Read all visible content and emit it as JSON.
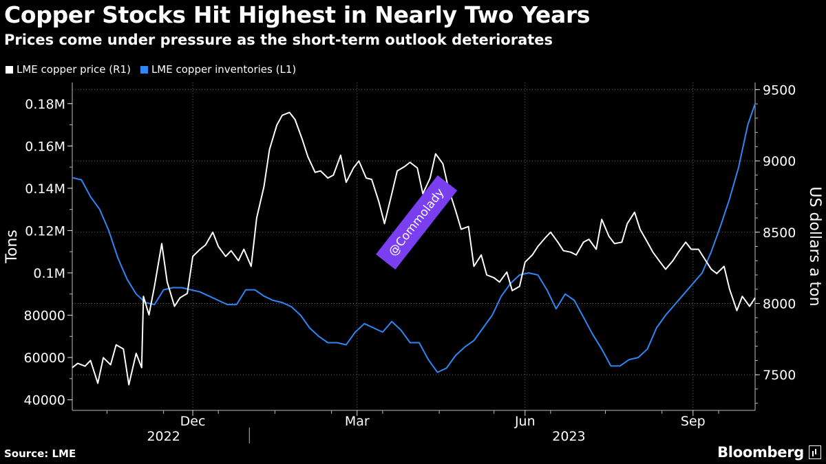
{
  "header": {
    "title": "Copper Stocks Hit Highest in Nearly Two Years",
    "subtitle": "Prices come under pressure as the short-term outlook deteriorates"
  },
  "legend": [
    {
      "label": "LME copper price (R1)",
      "color": "#ffffff"
    },
    {
      "label": "LME copper inventories (L1)",
      "color": "#2f86f5"
    }
  ],
  "watermark": "@Commolady",
  "footer": {
    "source": "Source: LME",
    "brand": "Bloomberg"
  },
  "chart_data": {
    "type": "line",
    "x_range": [
      "2022-09-26",
      "2023-10-05"
    ],
    "x_ticks": [
      {
        "date": "2022-12-01",
        "label": "Dec"
      },
      {
        "date": "2023-03-01",
        "label": "Mar"
      },
      {
        "date": "2023-06-01",
        "label": "Jun"
      },
      {
        "date": "2023-09-01",
        "label": "Sep"
      }
    ],
    "year_labels": [
      {
        "date": "2022-11-15",
        "label": "2022"
      },
      {
        "date": "2023-06-25",
        "label": "2023"
      }
    ],
    "left_axis": {
      "label": "Tons",
      "ylim": [
        35000,
        190000
      ],
      "ticks": [
        {
          "value": 40000,
          "label": "40000"
        },
        {
          "value": 60000,
          "label": "60000"
        },
        {
          "value": 80000,
          "label": "80000"
        },
        {
          "value": 100000,
          "label": "0.1M"
        },
        {
          "value": 120000,
          "label": "0.12M"
        },
        {
          "value": 140000,
          "label": "0.14M"
        },
        {
          "value": 160000,
          "label": "0.16M"
        },
        {
          "value": 180000,
          "label": "0.18M"
        }
      ]
    },
    "right_axis": {
      "label": "US dollars a ton",
      "ylim": [
        7250,
        9550
      ],
      "ticks": [
        {
          "value": 7500,
          "label": "7500"
        },
        {
          "value": 8000,
          "label": "8000"
        },
        {
          "value": 8500,
          "label": "8500"
        },
        {
          "value": 9000,
          "label": "9000"
        },
        {
          "value": 9500,
          "label": "9500"
        }
      ]
    },
    "series": [
      {
        "name": "LME copper price (R1)",
        "axis": "right",
        "color": "#ffffff",
        "points": [
          [
            "2022-09-26",
            7550
          ],
          [
            "2022-09-29",
            7580
          ],
          [
            "2022-10-03",
            7560
          ],
          [
            "2022-10-06",
            7600
          ],
          [
            "2022-10-10",
            7440
          ],
          [
            "2022-10-13",
            7620
          ],
          [
            "2022-10-17",
            7570
          ],
          [
            "2022-10-20",
            7710
          ],
          [
            "2022-10-24",
            7680
          ],
          [
            "2022-10-27",
            7430
          ],
          [
            "2022-10-31",
            7650
          ],
          [
            "2022-11-03",
            7550
          ],
          [
            "2022-11-04",
            8050
          ],
          [
            "2022-11-07",
            7920
          ],
          [
            "2022-11-10",
            8120
          ],
          [
            "2022-11-14",
            8420
          ],
          [
            "2022-11-17",
            8150
          ],
          [
            "2022-11-21",
            7980
          ],
          [
            "2022-11-24",
            8040
          ],
          [
            "2022-11-28",
            8070
          ],
          [
            "2022-12-01",
            8330
          ],
          [
            "2022-12-05",
            8380
          ],
          [
            "2022-12-08",
            8410
          ],
          [
            "2022-12-12",
            8500
          ],
          [
            "2022-12-15",
            8400
          ],
          [
            "2022-12-19",
            8330
          ],
          [
            "2022-12-22",
            8370
          ],
          [
            "2022-12-26",
            8300
          ],
          [
            "2022-12-29",
            8380
          ],
          [
            "2023-01-02",
            8260
          ],
          [
            "2023-01-05",
            8600
          ],
          [
            "2023-01-09",
            8820
          ],
          [
            "2023-01-12",
            9080
          ],
          [
            "2023-01-16",
            9250
          ],
          [
            "2023-01-19",
            9320
          ],
          [
            "2023-01-23",
            9340
          ],
          [
            "2023-01-26",
            9290
          ],
          [
            "2023-01-30",
            9150
          ],
          [
            "2023-02-02",
            9030
          ],
          [
            "2023-02-06",
            8920
          ],
          [
            "2023-02-09",
            8930
          ],
          [
            "2023-02-13",
            8880
          ],
          [
            "2023-02-16",
            8900
          ],
          [
            "2023-02-20",
            9040
          ],
          [
            "2023-02-23",
            8850
          ],
          [
            "2023-02-27",
            8950
          ],
          [
            "2023-03-02",
            9000
          ],
          [
            "2023-03-06",
            8880
          ],
          [
            "2023-03-09",
            8870
          ],
          [
            "2023-03-13",
            8710
          ],
          [
            "2023-03-16",
            8560
          ],
          [
            "2023-03-20",
            8770
          ],
          [
            "2023-03-23",
            8930
          ],
          [
            "2023-03-27",
            8960
          ],
          [
            "2023-03-30",
            8990
          ],
          [
            "2023-04-03",
            8950
          ],
          [
            "2023-04-06",
            8770
          ],
          [
            "2023-04-10",
            8880
          ],
          [
            "2023-04-13",
            9050
          ],
          [
            "2023-04-17",
            8980
          ],
          [
            "2023-04-20",
            8810
          ],
          [
            "2023-04-24",
            8650
          ],
          [
            "2023-04-27",
            8520
          ],
          [
            "2023-05-01",
            8540
          ],
          [
            "2023-05-04",
            8260
          ],
          [
            "2023-05-08",
            8340
          ],
          [
            "2023-05-11",
            8200
          ],
          [
            "2023-05-15",
            8180
          ],
          [
            "2023-05-18",
            8150
          ],
          [
            "2023-05-22",
            8220
          ],
          [
            "2023-05-25",
            8090
          ],
          [
            "2023-05-29",
            8120
          ],
          [
            "2023-06-01",
            8290
          ],
          [
            "2023-06-05",
            8340
          ],
          [
            "2023-06-08",
            8400
          ],
          [
            "2023-06-12",
            8460
          ],
          [
            "2023-06-15",
            8500
          ],
          [
            "2023-06-19",
            8430
          ],
          [
            "2023-06-22",
            8370
          ],
          [
            "2023-06-26",
            8360
          ],
          [
            "2023-06-29",
            8340
          ],
          [
            "2023-07-03",
            8430
          ],
          [
            "2023-07-06",
            8450
          ],
          [
            "2023-07-10",
            8380
          ],
          [
            "2023-07-13",
            8590
          ],
          [
            "2023-07-17",
            8470
          ],
          [
            "2023-07-20",
            8420
          ],
          [
            "2023-07-24",
            8430
          ],
          [
            "2023-07-27",
            8560
          ],
          [
            "2023-07-31",
            8640
          ],
          [
            "2023-08-03",
            8520
          ],
          [
            "2023-08-07",
            8430
          ],
          [
            "2023-08-10",
            8360
          ],
          [
            "2023-08-14",
            8290
          ],
          [
            "2023-08-17",
            8240
          ],
          [
            "2023-08-21",
            8300
          ],
          [
            "2023-08-24",
            8360
          ],
          [
            "2023-08-28",
            8430
          ],
          [
            "2023-08-31",
            8380
          ],
          [
            "2023-09-04",
            8380
          ],
          [
            "2023-09-07",
            8320
          ],
          [
            "2023-09-11",
            8240
          ],
          [
            "2023-09-14",
            8210
          ],
          [
            "2023-09-18",
            8260
          ],
          [
            "2023-09-21",
            8100
          ],
          [
            "2023-09-25",
            7950
          ],
          [
            "2023-09-28",
            8050
          ],
          [
            "2023-10-02",
            7980
          ],
          [
            "2023-10-05",
            8040
          ]
        ]
      },
      {
        "name": "LME copper inventories (L1)",
        "axis": "left",
        "color": "#2f86f5",
        "points": [
          [
            "2022-09-26",
            145000
          ],
          [
            "2022-10-01",
            144000
          ],
          [
            "2022-10-06",
            136000
          ],
          [
            "2022-10-11",
            130000
          ],
          [
            "2022-10-16",
            120000
          ],
          [
            "2022-10-21",
            107000
          ],
          [
            "2022-10-26",
            97000
          ],
          [
            "2022-10-31",
            90000
          ],
          [
            "2022-11-05",
            86000
          ],
          [
            "2022-11-10",
            85000
          ],
          [
            "2022-11-15",
            92000
          ],
          [
            "2022-11-20",
            93000
          ],
          [
            "2022-11-25",
            93000
          ],
          [
            "2022-11-30",
            92000
          ],
          [
            "2022-12-05",
            91000
          ],
          [
            "2022-12-10",
            89000
          ],
          [
            "2022-12-15",
            87000
          ],
          [
            "2022-12-20",
            85000
          ],
          [
            "2022-12-25",
            85000
          ],
          [
            "2022-12-30",
            92000
          ],
          [
            "2023-01-04",
            92000
          ],
          [
            "2023-01-09",
            89000
          ],
          [
            "2023-01-14",
            87000
          ],
          [
            "2023-01-19",
            86000
          ],
          [
            "2023-01-24",
            84000
          ],
          [
            "2023-01-29",
            80000
          ],
          [
            "2023-02-03",
            74000
          ],
          [
            "2023-02-08",
            70000
          ],
          [
            "2023-02-13",
            67000
          ],
          [
            "2023-02-18",
            67000
          ],
          [
            "2023-02-23",
            66000
          ],
          [
            "2023-02-28",
            72000
          ],
          [
            "2023-03-05",
            76000
          ],
          [
            "2023-03-10",
            74000
          ],
          [
            "2023-03-15",
            72000
          ],
          [
            "2023-03-20",
            77000
          ],
          [
            "2023-03-25",
            73000
          ],
          [
            "2023-03-30",
            67000
          ],
          [
            "2023-04-04",
            67000
          ],
          [
            "2023-04-09",
            59000
          ],
          [
            "2023-04-14",
            53000
          ],
          [
            "2023-04-19",
            55000
          ],
          [
            "2023-04-24",
            61000
          ],
          [
            "2023-04-29",
            65000
          ],
          [
            "2023-05-04",
            68000
          ],
          [
            "2023-05-09",
            74000
          ],
          [
            "2023-05-14",
            80000
          ],
          [
            "2023-05-19",
            89000
          ],
          [
            "2023-05-24",
            95000
          ],
          [
            "2023-05-29",
            99000
          ],
          [
            "2023-06-03",
            100000
          ],
          [
            "2023-06-08",
            99000
          ],
          [
            "2023-06-13",
            92000
          ],
          [
            "2023-06-18",
            83000
          ],
          [
            "2023-06-23",
            90000
          ],
          [
            "2023-06-28",
            87000
          ],
          [
            "2023-07-03",
            79000
          ],
          [
            "2023-07-08",
            71000
          ],
          [
            "2023-07-13",
            64000
          ],
          [
            "2023-07-18",
            56000
          ],
          [
            "2023-07-23",
            56000
          ],
          [
            "2023-07-28",
            59000
          ],
          [
            "2023-08-02",
            60000
          ],
          [
            "2023-08-07",
            64000
          ],
          [
            "2023-08-12",
            74000
          ],
          [
            "2023-08-17",
            80000
          ],
          [
            "2023-08-22",
            85000
          ],
          [
            "2023-08-27",
            90000
          ],
          [
            "2023-09-01",
            95000
          ],
          [
            "2023-09-06",
            100000
          ],
          [
            "2023-09-11",
            110000
          ],
          [
            "2023-09-16",
            122000
          ],
          [
            "2023-09-21",
            135000
          ],
          [
            "2023-09-26",
            150000
          ],
          [
            "2023-10-01",
            170000
          ],
          [
            "2023-10-05",
            180000
          ]
        ]
      }
    ]
  }
}
